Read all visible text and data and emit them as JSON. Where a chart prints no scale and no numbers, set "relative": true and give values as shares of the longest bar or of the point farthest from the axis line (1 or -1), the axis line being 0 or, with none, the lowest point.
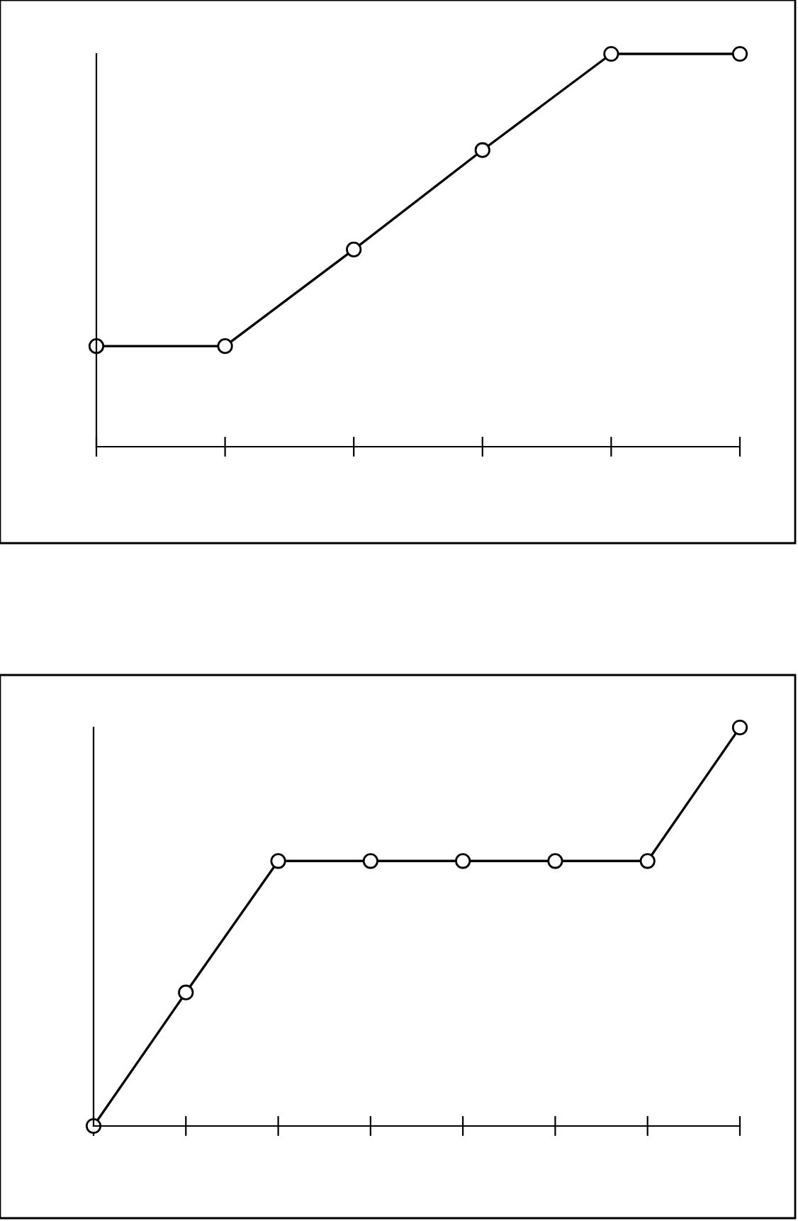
{
  "chart_data": [
    {
      "type": "line",
      "relative": true,
      "categories": [
        null,
        null,
        null,
        null,
        null,
        null
      ],
      "marker": "circle",
      "line_style": "solid",
      "grid": false,
      "legend": false,
      "series": [
        {
          "color": "#000000",
          "values": [
            0.256,
            0.256,
            0.502,
            0.755,
            1,
            1
          ]
        }
      ]
    },
    {
      "type": "line",
      "relative": true,
      "categories": [
        null,
        null,
        null,
        null,
        null,
        null,
        null,
        null
      ],
      "marker": "circle",
      "line_style": "solid",
      "grid": false,
      "legend": false,
      "series": [
        {
          "color": "#000000",
          "values": [
            0,
            0.335,
            0.665,
            0.665,
            0.665,
            0.665,
            0.665,
            1
          ]
        }
      ]
    }
  ]
}
